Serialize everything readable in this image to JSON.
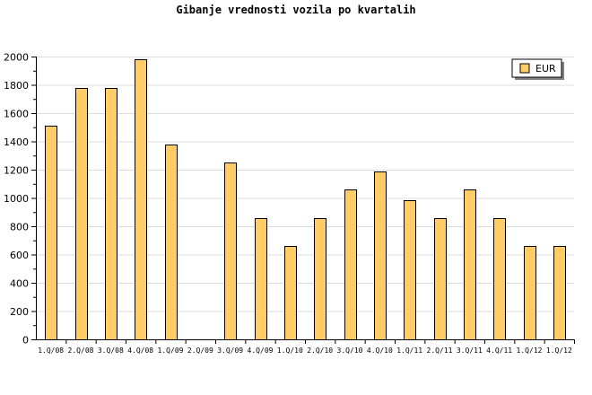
{
  "chart_data": {
    "type": "bar",
    "title": "Gibanje vrednosti vozila po kvartalih",
    "xlabel": "",
    "ylabel": "",
    "ylim": [
      0,
      2000
    ],
    "yticks": [
      0,
      200,
      400,
      600,
      800,
      1000,
      1200,
      1400,
      1600,
      1800,
      2000
    ],
    "categories": [
      "1.Q/08",
      "2.Q/08",
      "3.Q/08",
      "4.Q/08",
      "1.Q/09",
      "2.Q/09",
      "3.Q/09",
      "4.Q/09",
      "1.Q/10",
      "2.Q/10",
      "3.Q/10",
      "4.Q/10",
      "1.Q/11",
      "2.Q/11",
      "3.Q/11",
      "4.Q/11",
      "1.Q/12",
      "1.Q/12"
    ],
    "series": [
      {
        "name": "EUR",
        "color": "#ffcc66",
        "values": [
          1510,
          1780,
          1780,
          1980,
          1380,
          0,
          1250,
          860,
          660,
          860,
          1060,
          1190,
          985,
          860,
          1060,
          860,
          660,
          660
        ]
      }
    ],
    "grid": true,
    "legend_position": "top-right",
    "colors": {
      "bar_fill": "#ffcc66",
      "bar_stroke": "#000000",
      "grid": "#dddddd",
      "background": "#ffffff"
    }
  }
}
